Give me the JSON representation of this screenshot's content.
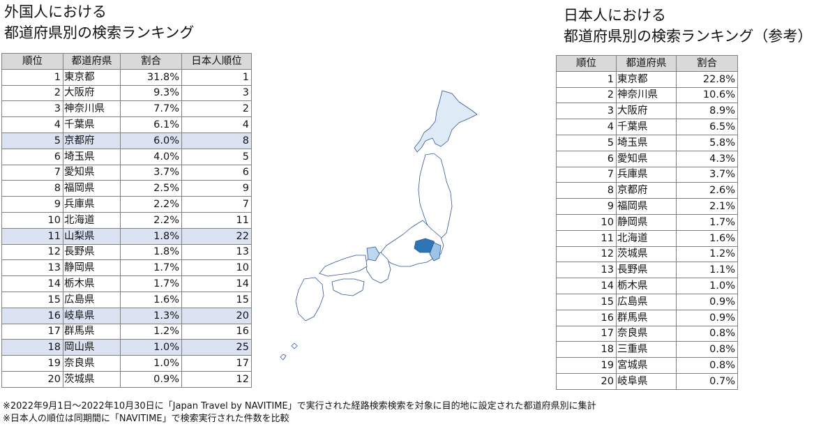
{
  "left": {
    "title_line1": "外国人における",
    "title_line2": "都道府県別の検索ランキング",
    "headers": [
      "順位",
      "都道府県",
      "割合",
      "日本人順位"
    ],
    "rows": [
      {
        "rank": "1",
        "pref": "東京都",
        "pct": "31.8%",
        "jp": "1",
        "highlight": false
      },
      {
        "rank": "2",
        "pref": "大阪府",
        "pct": "9.3%",
        "jp": "3",
        "highlight": false
      },
      {
        "rank": "3",
        "pref": "神奈川県",
        "pct": "7.7%",
        "jp": "2",
        "highlight": false
      },
      {
        "rank": "4",
        "pref": "千葉県",
        "pct": "6.1%",
        "jp": "4",
        "highlight": false
      },
      {
        "rank": "5",
        "pref": "京都府",
        "pct": "6.0%",
        "jp": "8",
        "highlight": true
      },
      {
        "rank": "6",
        "pref": "埼玉県",
        "pct": "4.0%",
        "jp": "5",
        "highlight": false
      },
      {
        "rank": "7",
        "pref": "愛知県",
        "pct": "3.7%",
        "jp": "6",
        "highlight": false
      },
      {
        "rank": "8",
        "pref": "福岡県",
        "pct": "2.5%",
        "jp": "9",
        "highlight": false
      },
      {
        "rank": "9",
        "pref": "兵庫県",
        "pct": "2.2%",
        "jp": "7",
        "highlight": false
      },
      {
        "rank": "10",
        "pref": "北海道",
        "pct": "2.2%",
        "jp": "11",
        "highlight": false
      },
      {
        "rank": "11",
        "pref": "山梨県",
        "pct": "1.8%",
        "jp": "22",
        "highlight": true
      },
      {
        "rank": "12",
        "pref": "長野県",
        "pct": "1.8%",
        "jp": "13",
        "highlight": false
      },
      {
        "rank": "13",
        "pref": "静岡県",
        "pct": "1.7%",
        "jp": "10",
        "highlight": false
      },
      {
        "rank": "14",
        "pref": "栃木県",
        "pct": "1.7%",
        "jp": "14",
        "highlight": false
      },
      {
        "rank": "15",
        "pref": "広島県",
        "pct": "1.6%",
        "jp": "15",
        "highlight": false
      },
      {
        "rank": "16",
        "pref": "岐阜県",
        "pct": "1.3%",
        "jp": "20",
        "highlight": true
      },
      {
        "rank": "17",
        "pref": "群馬県",
        "pct": "1.2%",
        "jp": "16",
        "highlight": false
      },
      {
        "rank": "18",
        "pref": "岡山県",
        "pct": "1.0%",
        "jp": "25",
        "highlight": true
      },
      {
        "rank": "19",
        "pref": "奈良県",
        "pct": "1.0%",
        "jp": "17",
        "highlight": false
      },
      {
        "rank": "20",
        "pref": "茨城県",
        "pct": "0.9%",
        "jp": "12",
        "highlight": false
      }
    ]
  },
  "right": {
    "title_line1": "日本人における",
    "title_line2": "都道府県別の検索ランキング（参考）",
    "headers": [
      "順位",
      "都道府県",
      "割合"
    ],
    "rows": [
      {
        "rank": "1",
        "pref": "東京都",
        "pct": "22.8%"
      },
      {
        "rank": "2",
        "pref": "神奈川県",
        "pct": "10.6%"
      },
      {
        "rank": "3",
        "pref": "大阪府",
        "pct": "8.9%"
      },
      {
        "rank": "4",
        "pref": "千葉県",
        "pct": "6.5%"
      },
      {
        "rank": "5",
        "pref": "埼玉県",
        "pct": "5.8%"
      },
      {
        "rank": "6",
        "pref": "愛知県",
        "pct": "4.3%"
      },
      {
        "rank": "7",
        "pref": "兵庫県",
        "pct": "3.7%"
      },
      {
        "rank": "8",
        "pref": "京都府",
        "pct": "2.6%"
      },
      {
        "rank": "9",
        "pref": "福岡県",
        "pct": "2.1%"
      },
      {
        "rank": "10",
        "pref": "静岡県",
        "pct": "1.7%"
      },
      {
        "rank": "11",
        "pref": "北海道",
        "pct": "1.6%"
      },
      {
        "rank": "12",
        "pref": "茨城県",
        "pct": "1.2%"
      },
      {
        "rank": "13",
        "pref": "長野県",
        "pct": "1.1%"
      },
      {
        "rank": "14",
        "pref": "栃木県",
        "pct": "1.0%"
      },
      {
        "rank": "15",
        "pref": "広島県",
        "pct": "0.9%"
      },
      {
        "rank": "16",
        "pref": "群馬県",
        "pct": "0.9%"
      },
      {
        "rank": "17",
        "pref": "奈良県",
        "pct": "0.8%"
      },
      {
        "rank": "18",
        "pref": "三重県",
        "pct": "0.8%"
      },
      {
        "rank": "19",
        "pref": "宮城県",
        "pct": "0.8%"
      },
      {
        "rank": "20",
        "pref": "岐阜県",
        "pct": "0.7%"
      }
    ]
  },
  "map": {
    "colors": {
      "tokyo": "#2e75b6",
      "high": "#9dc3e6",
      "mid": "#bdd7ee",
      "low": "#deebf7",
      "border": "#2f5597"
    }
  },
  "notes": {
    "line1": "※2022年9月1日～2022年10月30日に「Japan Travel by NAVITIME」で実行された経路検索検索を対象に目的地に設定された都道府県別に集計",
    "line2": "※日本人の順位は同期間に「NAVITIME」で検索実行された件数を比較"
  }
}
